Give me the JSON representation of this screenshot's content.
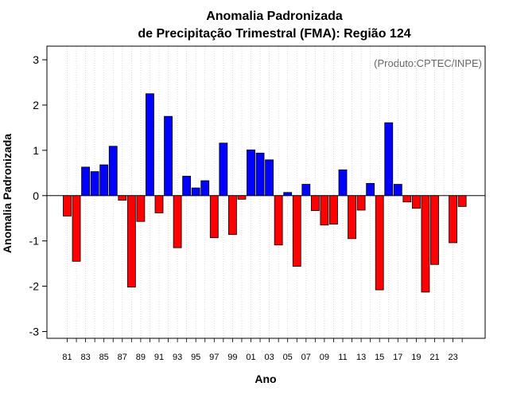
{
  "chart_data": {
    "type": "bar",
    "title": "Anomalia Padronizada",
    "subtitle": "de Precipitação Trimestral (FMA): Região 124",
    "xlabel": "Ano",
    "ylabel": "Anomalia Padronizada",
    "credit": "(Produto:CPTEC/INPE)",
    "ylim": [
      -3.15,
      3.3
    ],
    "yticks": [
      -3,
      -2,
      -1,
      0,
      1,
      2,
      3
    ],
    "grid": "vertical dotted",
    "positive_color": "#0000ff",
    "negative_color": "#ff0000",
    "categories": [
      "81",
      "82",
      "83",
      "84",
      "85",
      "86",
      "87",
      "88",
      "89",
      "90",
      "91",
      "92",
      "93",
      "94",
      "95",
      "96",
      "97",
      "98",
      "99",
      "00",
      "01",
      "02",
      "03",
      "04",
      "05",
      "06",
      "07",
      "08",
      "09",
      "10",
      "11",
      "12",
      "13",
      "14",
      "15",
      "16",
      "17",
      "18",
      "19",
      "20",
      "21",
      "22",
      "23",
      "24"
    ],
    "xtick_labels": [
      "81",
      "83",
      "85",
      "87",
      "89",
      "91",
      "93",
      "95",
      "97",
      "99",
      "01",
      "03",
      "05",
      "07",
      "09",
      "11",
      "13",
      "15",
      "17",
      "19",
      "21",
      "23"
    ],
    "values": [
      -0.45,
      -1.45,
      0.63,
      0.53,
      0.68,
      1.09,
      -0.1,
      -2.02,
      -0.57,
      2.25,
      -0.38,
      1.75,
      -1.15,
      0.43,
      0.17,
      0.33,
      -0.93,
      1.16,
      -0.86,
      -0.08,
      1.01,
      0.94,
      0.79,
      -1.09,
      0.07,
      -1.56,
      0.25,
      -0.33,
      -0.65,
      -0.63,
      0.57,
      -0.95,
      -0.32,
      0.27,
      -2.08,
      1.61,
      0.25,
      -0.14,
      -0.28,
      -2.13,
      -1.52,
      0.0,
      -1.04,
      -0.24
    ]
  }
}
